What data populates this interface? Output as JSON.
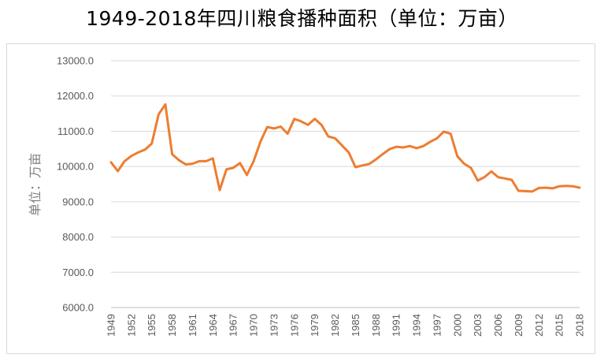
{
  "title": "1949-2018年四川粮食播种面积（单位：万亩）",
  "chart_data": {
    "type": "line",
    "title": "1949-2018年四川粮食播种面积（单位：万亩）",
    "xlabel": "",
    "ylabel": "单位：万亩",
    "ylim": [
      6000,
      13000
    ],
    "yticks": [
      "6000.0",
      "7000.0",
      "8000.0",
      "9000.0",
      "10000.0",
      "11000.0",
      "12000.0",
      "13000.0"
    ],
    "xticks": [
      "1949",
      "1952",
      "1955",
      "1958",
      "1961",
      "1964",
      "1967",
      "1970",
      "1973",
      "1976",
      "1979",
      "1982",
      "1985",
      "1988",
      "1991",
      "1994",
      "1997",
      "2000",
      "2003",
      "2006",
      "2009",
      "2012",
      "2015",
      "2018"
    ],
    "grid": true,
    "legend": "none",
    "line_color": "#ed7d31",
    "series": [
      {
        "x": [
          1949,
          1950,
          1951,
          1952,
          1953,
          1954,
          1955,
          1956,
          1957,
          1958,
          1959,
          1960,
          1961,
          1962,
          1963,
          1964,
          1965,
          1966,
          1967,
          1968,
          1969,
          1970,
          1971,
          1972,
          1973,
          1974,
          1975,
          1976,
          1977,
          1978,
          1979,
          1980,
          1981,
          1982,
          1983,
          1984,
          1985,
          1986,
          1987,
          1988,
          1989,
          1990,
          1991,
          1992,
          1993,
          1994,
          1995,
          1996,
          1997,
          1998,
          1999,
          2000,
          2001,
          2002,
          2003,
          2004,
          2005,
          2006,
          2007,
          2008,
          2009,
          2010,
          2011,
          2012,
          2013,
          2014,
          2015,
          2016,
          2017,
          2018
        ],
        "values": [
          10120,
          9870,
          10150,
          10300,
          10400,
          10480,
          10650,
          11480,
          11760,
          10350,
          10180,
          10060,
          10080,
          10150,
          10150,
          10230,
          9330,
          9920,
          9960,
          10100,
          9760,
          10150,
          10700,
          11120,
          11080,
          11130,
          10930,
          11350,
          11280,
          11180,
          11350,
          11180,
          10850,
          10800,
          10600,
          10400,
          9980,
          10030,
          10070,
          10200,
          10350,
          10490,
          10560,
          10540,
          10580,
          10520,
          10580,
          10700,
          10800,
          10990,
          10930,
          10290,
          10080,
          9960,
          9600,
          9700,
          9860,
          9700,
          9660,
          9620,
          9310,
          9300,
          9290,
          9390,
          9400,
          9380,
          9440,
          9450,
          9440,
          9400
        ]
      }
    ]
  }
}
